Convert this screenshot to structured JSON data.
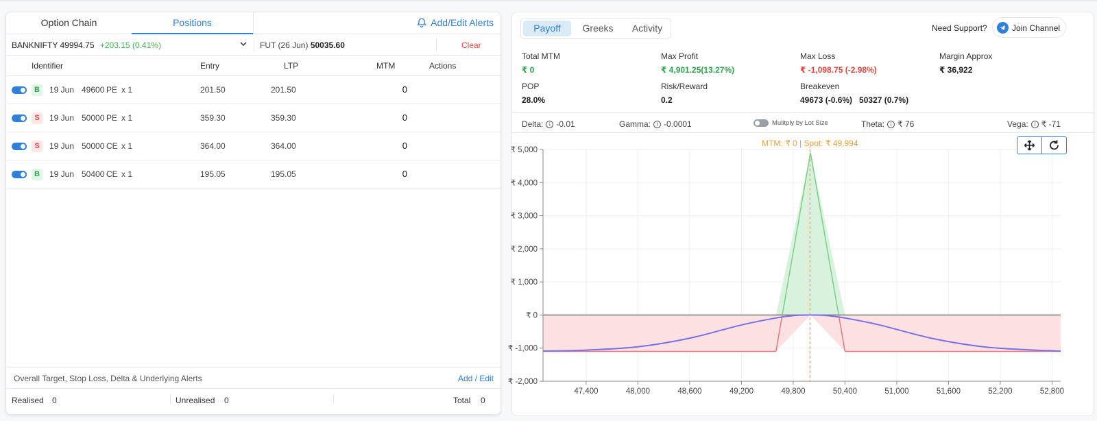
{
  "left": {
    "tabs": [
      "Option Chain",
      "Positions"
    ],
    "alerts_label": "Add/Edit Alerts",
    "symbol": {
      "name": "BANKNIFTY",
      "price": "49994.75",
      "change": "+203.15 (0.41%)"
    },
    "fut": {
      "label": "FUT (26 Jun)",
      "price": "50035.60"
    },
    "clear_label": "Clear",
    "columns": [
      "Identifier",
      "Entry",
      "LTP",
      "MTM",
      "Actions"
    ],
    "positions": [
      {
        "side": "B",
        "expiry": "19 Jun",
        "strike": "49600",
        "type": "PE",
        "qty": "x 1",
        "entry": "201.50",
        "ltp": "201.50",
        "mtm": "0"
      },
      {
        "side": "S",
        "expiry": "19 Jun",
        "strike": "50000",
        "type": "PE",
        "qty": "x 1",
        "entry": "359.30",
        "ltp": "359.30",
        "mtm": "0"
      },
      {
        "side": "S",
        "expiry": "19 Jun",
        "strike": "50000",
        "type": "CE",
        "qty": "x 1",
        "entry": "364.00",
        "ltp": "364.00",
        "mtm": "0"
      },
      {
        "side": "B",
        "expiry": "19 Jun",
        "strike": "50400",
        "type": "CE",
        "qty": "x 1",
        "entry": "195.05",
        "ltp": "195.05",
        "mtm": "0"
      }
    ],
    "footer_label": "Overall Target, Stop Loss, Delta & Underlying Alerts",
    "add_edit_label": "Add / Edit",
    "totals": {
      "realised_label": "Realised",
      "realised": "0",
      "unrealised_label": "Unrealised",
      "unrealised": "0",
      "total_label": "Total",
      "total": "0"
    }
  },
  "right": {
    "tabs": [
      "Payoff",
      "Greeks",
      "Activity"
    ],
    "support_label": "Need Support?",
    "join_label": "Join Channel",
    "stats": [
      {
        "label": "Total MTM",
        "value": "₹ 0",
        "color": "green"
      },
      {
        "label": "Max Profit",
        "value": "₹ 4,901.25(13.27%)",
        "color": "green"
      },
      {
        "label": "Max Loss",
        "value": "₹ -1,098.75 (-2.98%)",
        "color": "red"
      },
      {
        "label": "Margin Approx",
        "value": "₹ 36,922",
        "color": ""
      },
      {
        "label": "POP",
        "value": "28.0%",
        "color": ""
      },
      {
        "label": "Risk/Reward",
        "value": "0.2",
        "color": ""
      },
      {
        "label": "Breakeven",
        "value": "49673 (-0.6%)   50327 (0.7%)",
        "color": ""
      }
    ],
    "greeks": {
      "delta_label": "Delta:",
      "delta": "-0.01",
      "gamma_label": "Gamma:",
      "gamma": "-0.0001",
      "multiply_label": "Mulitply by Lot Size",
      "theta_label": "Theta:",
      "theta": "₹ 76",
      "vega_label": "Vega:",
      "vega": "₹ -71"
    }
  },
  "chart_data": {
    "type": "line",
    "annotation": "MTM: ₹ 0  |  Spot: ₹ 49,994",
    "spot": 49994,
    "xlim": [
      46900,
      52900
    ],
    "ylim": [
      -2000,
      5000
    ],
    "x_ticks": [
      47400,
      48000,
      48600,
      49200,
      49800,
      50400,
      51000,
      51600,
      52200,
      52800
    ],
    "x_tick_labels": [
      "47,400",
      "48,000",
      "48,600",
      "49,200",
      "49,800",
      "50,400",
      "51,000",
      "51,600",
      "52,200",
      "52,800"
    ],
    "y_ticks": [
      5000,
      4000,
      3000,
      2000,
      1000,
      0,
      -1000,
      -2000
    ],
    "y_tick_labels": [
      "₹ 5,000",
      "₹ 4,000",
      "₹ 3,000",
      "₹ 2,000",
      "₹ 1,000",
      "₹ 0",
      "₹ -1,000",
      "₹ -2,000"
    ],
    "series": [
      {
        "color": "#e8767c",
        "x": [
          46900,
          49600,
          50000,
          50400,
          52900
        ],
        "y": [
          -1099,
          -1099,
          4901,
          -1099,
          -1099
        ]
      },
      {
        "color": "#7b6fe6",
        "x": [
          46900,
          47400,
          48000,
          48600,
          49200,
          49600,
          49800,
          50000,
          50200,
          50400,
          50800,
          51400,
          52000,
          52600,
          52900
        ],
        "y": [
          -1090,
          -1060,
          -960,
          -700,
          -300,
          -90,
          -20,
          0,
          -20,
          -90,
          -300,
          -700,
          -960,
          -1060,
          -1090
        ]
      }
    ],
    "grid": true,
    "colors": {
      "profit_fill": "#d8f2de",
      "loss_fill": "#fbe1e2",
      "spot_line": "#e8a33d",
      "zero_line": "#777777"
    }
  }
}
